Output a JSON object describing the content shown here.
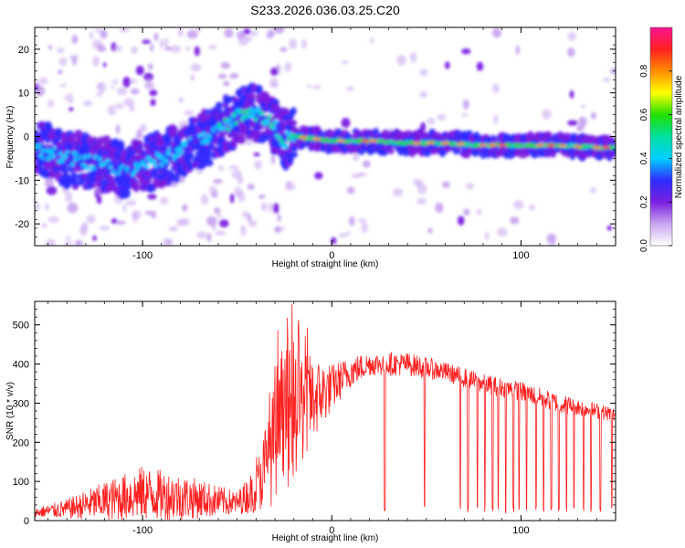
{
  "figure": {
    "title": "S233.2026.036.03.25.C20"
  },
  "chart_data": [
    {
      "type": "heatmap",
      "title": "S233.2026.036.03.25.C20",
      "xlabel": "Height of straight line (km)",
      "ylabel": "Frequency (Hz)",
      "xlim": [
        -157,
        150
      ],
      "ylim": [
        -25,
        25
      ],
      "xticks": [
        -100,
        0,
        100
      ],
      "xtick_labels": [
        "-100",
        "0",
        "100"
      ],
      "yticks": [
        -20,
        -10,
        0,
        10,
        20
      ],
      "ytick_labels": [
        "-20",
        "-10",
        "0",
        "10",
        "20"
      ],
      "colorbar": {
        "label": "Normalized spectral amplitude",
        "range": [
          0,
          1
        ],
        "ticks": [
          0.0,
          0.2,
          0.4,
          0.6,
          0.8
        ],
        "tick_labels": [
          "0.0",
          "0.2",
          "0.4",
          "0.6",
          "0.8"
        ],
        "colormap": [
          "#ffffff",
          "#c9a6f0",
          "#7a1fe0",
          "#2f2cff",
          "#00d0ff",
          "#00e0a0",
          "#22e000",
          "#ffff00",
          "#ff8c00",
          "#ff2020",
          "#ff1493"
        ]
      },
      "ridge": {
        "x": [
          -155,
          -140,
          -125,
          -110,
          -95,
          -80,
          -65,
          -55,
          -45,
          -38,
          -30,
          -25,
          -20,
          -10,
          0,
          20,
          40,
          60,
          80,
          100,
          120,
          140,
          150
        ],
        "y": [
          -3,
          -5,
          -6,
          -8,
          -6,
          -3,
          0,
          3,
          6,
          5,
          2,
          -1,
          0,
          -0.5,
          -1,
          -1,
          -1.5,
          -1.5,
          -2,
          -2,
          -2,
          -2.5,
          -2.5
        ]
      },
      "grid": false
    },
    {
      "type": "line",
      "xlabel": "Height of straight line (km)",
      "ylabel": "SNR (10 * v/v)",
      "xlim": [
        -157,
        150
      ],
      "ylim": [
        0,
        560
      ],
      "xticks": [
        -100,
        0,
        100
      ],
      "xtick_labels": [
        "-100",
        "0",
        "100"
      ],
      "yticks": [
        0,
        100,
        200,
        300,
        400,
        500
      ],
      "ytick_labels": [
        "0",
        "100",
        "200",
        "300",
        "400",
        "500"
      ],
      "series_color": "#ff2020",
      "envelope": {
        "x": [
          -157,
          -140,
          -120,
          -100,
          -80,
          -60,
          -50,
          -40,
          -30,
          -20,
          -10,
          0,
          10,
          20,
          40,
          60,
          80,
          100,
          120,
          140,
          150
        ],
        "mean": [
          20,
          30,
          50,
          70,
          60,
          50,
          45,
          80,
          200,
          280,
          310,
          340,
          380,
          400,
          400,
          380,
          350,
          330,
          300,
          280,
          270
        ],
        "amp": [
          12,
          25,
          50,
          70,
          60,
          40,
          30,
          60,
          160,
          180,
          110,
          60,
          40,
          30,
          30,
          25,
          25,
          25,
          25,
          20,
          20
        ]
      },
      "dropouts_x": [
        28,
        49,
        68,
        72,
        77,
        81,
        85,
        88,
        92,
        96,
        99,
        103,
        108,
        112,
        116,
        120,
        124,
        128,
        133,
        137,
        142,
        148
      ],
      "dropout_min": 20,
      "grid": false
    }
  ]
}
